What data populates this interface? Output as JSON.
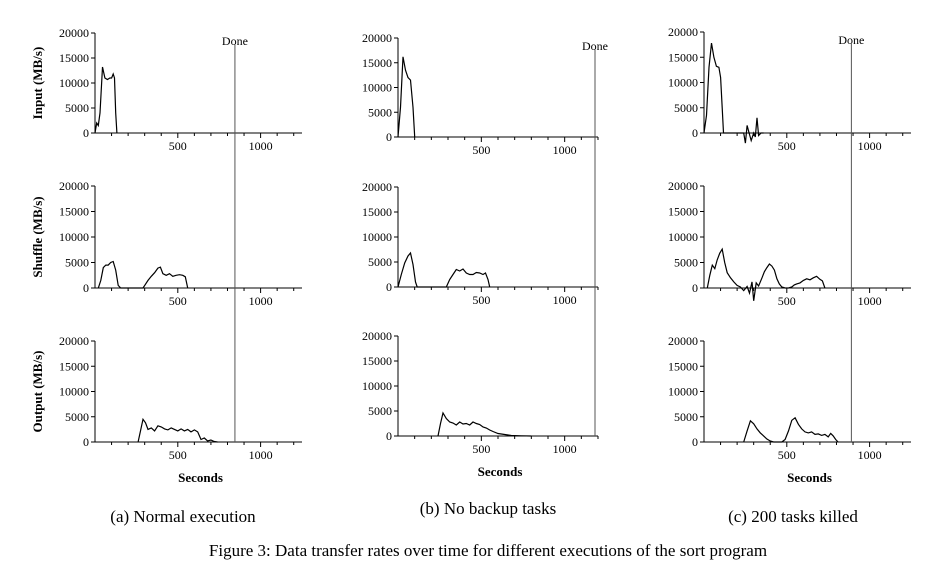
{
  "figure": {
    "caption": "Figure 3: Data transfer rates over time for different executions of the sort program"
  },
  "chart_data": [
    {
      "type": "line",
      "panel_caption": "(a) Normal execution",
      "done_label": "Done",
      "done_x": 845,
      "xlabel": "Seconds",
      "x_ticks": [
        500,
        1000
      ],
      "xlim": [
        0,
        1250
      ],
      "rows": [
        {
          "ylabel": "Input (MB/s)",
          "ylim": [
            0,
            20000
          ],
          "y_ticks": [
            0,
            5000,
            10000,
            15000,
            20000
          ],
          "points": [
            [
              0,
              0
            ],
            [
              10,
              2000
            ],
            [
              20,
              1500
            ],
            [
              30,
              4000
            ],
            [
              45,
              13200
            ],
            [
              60,
              11000
            ],
            [
              75,
              10700
            ],
            [
              90,
              11000
            ],
            [
              100,
              11000
            ],
            [
              110,
              11800
            ],
            [
              118,
              11000
            ],
            [
              125,
              4000
            ],
            [
              132,
              0
            ]
          ]
        },
        {
          "ylabel": "Shuffle (MB/s)",
          "ylim": [
            0,
            20000
          ],
          "y_ticks": [
            0,
            5000,
            10000,
            15000,
            20000
          ],
          "points": [
            [
              20,
              0
            ],
            [
              35,
              1500
            ],
            [
              50,
              4000
            ],
            [
              65,
              4500
            ],
            [
              80,
              4500
            ],
            [
              95,
              5000
            ],
            [
              110,
              5200
            ],
            [
              125,
              3500
            ],
            [
              140,
              500
            ],
            [
              155,
              0
            ],
            [
              290,
              0
            ],
            [
              300,
              500
            ],
            [
              320,
              1500
            ],
            [
              340,
              2300
            ],
            [
              360,
              3000
            ],
            [
              380,
              3900
            ],
            [
              395,
              4100
            ],
            [
              410,
              2800
            ],
            [
              430,
              2500
            ],
            [
              450,
              2800
            ],
            [
              470,
              2300
            ],
            [
              490,
              2500
            ],
            [
              510,
              2600
            ],
            [
              530,
              2500
            ],
            [
              545,
              2200
            ],
            [
              560,
              0
            ]
          ]
        },
        {
          "ylabel": "Output (MB/s)",
          "ylim": [
            0,
            20000
          ],
          "y_ticks": [
            0,
            5000,
            10000,
            15000,
            20000
          ],
          "points": [
            [
              260,
              0
            ],
            [
              275,
              2200
            ],
            [
              290,
              4500
            ],
            [
              305,
              3800
            ],
            [
              320,
              2500
            ],
            [
              340,
              2800
            ],
            [
              360,
              2200
            ],
            [
              380,
              3200
            ],
            [
              400,
              3000
            ],
            [
              420,
              2600
            ],
            [
              440,
              2400
            ],
            [
              460,
              2800
            ],
            [
              480,
              2500
            ],
            [
              500,
              2200
            ],
            [
              520,
              2600
            ],
            [
              540,
              2200
            ],
            [
              560,
              2500
            ],
            [
              580,
              2000
            ],
            [
              600,
              2400
            ],
            [
              620,
              2000
            ],
            [
              640,
              500
            ],
            [
              660,
              800
            ],
            [
              680,
              200
            ],
            [
              700,
              400
            ],
            [
              720,
              100
            ],
            [
              740,
              0
            ]
          ]
        }
      ]
    },
    {
      "type": "line",
      "panel_caption": "(b) No backup tasks",
      "done_label": "Done",
      "done_x": 1283,
      "xlabel": "Seconds",
      "x_ticks": [
        500,
        1000
      ],
      "xlim": [
        0,
        1200
      ],
      "rows": [
        {
          "ylabel": "",
          "ylim": [
            0,
            20000
          ],
          "y_ticks": [
            0,
            5000,
            10000,
            15000,
            20000
          ],
          "points": [
            [
              0,
              0
            ],
            [
              15,
              6000
            ],
            [
              30,
              16200
            ],
            [
              45,
              13500
            ],
            [
              60,
              12000
            ],
            [
              75,
              11500
            ],
            [
              90,
              6000
            ],
            [
              100,
              0
            ]
          ]
        },
        {
          "ylabel": "",
          "ylim": [
            0,
            20000
          ],
          "y_ticks": [
            0,
            5000,
            10000,
            15000,
            20000
          ],
          "points": [
            [
              0,
              0
            ],
            [
              20,
              2500
            ],
            [
              40,
              4800
            ],
            [
              60,
              6200
            ],
            [
              75,
              6800
            ],
            [
              90,
              4500
            ],
            [
              105,
              1000
            ],
            [
              115,
              0
            ],
            [
              290,
              0
            ],
            [
              310,
              1500
            ],
            [
              330,
              2500
            ],
            [
              350,
              3500
            ],
            [
              370,
              3200
            ],
            [
              390,
              3600
            ],
            [
              410,
              2800
            ],
            [
              430,
              2500
            ],
            [
              450,
              2500
            ],
            [
              470,
              2900
            ],
            [
              490,
              2800
            ],
            [
              510,
              2500
            ],
            [
              525,
              2800
            ],
            [
              540,
              1500
            ],
            [
              550,
              0
            ]
          ]
        },
        {
          "ylabel": "",
          "ylim": [
            0,
            20000
          ],
          "y_ticks": [
            0,
            5000,
            10000,
            15000,
            20000
          ],
          "points": [
            [
              240,
              0
            ],
            [
              255,
              2500
            ],
            [
              270,
              4600
            ],
            [
              290,
              3500
            ],
            [
              310,
              2800
            ],
            [
              330,
              2600
            ],
            [
              350,
              2200
            ],
            [
              370,
              2800
            ],
            [
              390,
              2400
            ],
            [
              410,
              2500
            ],
            [
              430,
              2200
            ],
            [
              450,
              2800
            ],
            [
              470,
              2500
            ],
            [
              490,
              2300
            ],
            [
              510,
              1800
            ],
            [
              530,
              1600
            ],
            [
              550,
              1200
            ],
            [
              570,
              900
            ],
            [
              600,
              500
            ],
            [
              640,
              300
            ],
            [
              680,
              100
            ],
            [
              740,
              50
            ],
            [
              800,
              0
            ]
          ]
        }
      ]
    },
    {
      "type": "line",
      "panel_caption": "(c) 200 tasks killed",
      "done_label": "Done",
      "done_x": 890,
      "xlabel": "Seconds",
      "x_ticks": [
        500,
        1000
      ],
      "xlim": [
        0,
        1250
      ],
      "rows": [
        {
          "ylabel": "",
          "ylim": [
            0,
            20000
          ],
          "y_ticks": [
            0,
            5000,
            10000,
            15000,
            20000
          ],
          "points": [
            [
              0,
              0
            ],
            [
              15,
              3500
            ],
            [
              30,
              13000
            ],
            [
              45,
              17800
            ],
            [
              60,
              15000
            ],
            [
              75,
              13200
            ],
            [
              90,
              13000
            ],
            [
              100,
              11000
            ],
            [
              110,
              5000
            ],
            [
              118,
              0
            ],
            [
              240,
              0
            ],
            [
              250,
              -2000
            ],
            [
              260,
              1500
            ],
            [
              270,
              300
            ],
            [
              285,
              -1500
            ],
            [
              300,
              0
            ],
            [
              310,
              -800
            ],
            [
              320,
              3000
            ],
            [
              330,
              -500
            ],
            [
              345,
              0
            ],
            [
              360,
              0
            ]
          ]
        },
        {
          "ylabel": "",
          "ylim": [
            0,
            20000
          ],
          "y_ticks": [
            0,
            5000,
            10000,
            15000,
            20000
          ],
          "points": [
            [
              20,
              0
            ],
            [
              35,
              2500
            ],
            [
              50,
              4500
            ],
            [
              65,
              3800
            ],
            [
              80,
              5500
            ],
            [
              95,
              6800
            ],
            [
              110,
              7600
            ],
            [
              125,
              5000
            ],
            [
              140,
              3000
            ],
            [
              160,
              2000
            ],
            [
              180,
              1200
            ],
            [
              200,
              500
            ],
            [
              220,
              200
            ],
            [
              240,
              -500
            ],
            [
              260,
              300
            ],
            [
              275,
              -1000
            ],
            [
              290,
              1200
            ],
            [
              300,
              -2500
            ],
            [
              315,
              1000
            ],
            [
              330,
              400
            ],
            [
              350,
              2000
            ],
            [
              365,
              3200
            ],
            [
              380,
              4000
            ],
            [
              395,
              4700
            ],
            [
              410,
              4300
            ],
            [
              425,
              3500
            ],
            [
              440,
              1800
            ],
            [
              455,
              800
            ],
            [
              470,
              200
            ],
            [
              490,
              0
            ],
            [
              510,
              0
            ],
            [
              530,
              200
            ],
            [
              545,
              600
            ],
            [
              560,
              800
            ],
            [
              580,
              1000
            ],
            [
              600,
              1500
            ],
            [
              620,
              1800
            ],
            [
              640,
              1600
            ],
            [
              660,
              2000
            ],
            [
              680,
              2300
            ],
            [
              700,
              1700
            ],
            [
              715,
              1400
            ],
            [
              730,
              0
            ]
          ]
        },
        {
          "ylabel": "",
          "ylim": [
            0,
            20000
          ],
          "y_ticks": [
            0,
            5000,
            10000,
            15000,
            20000
          ],
          "points": [
            [
              240,
              0
            ],
            [
              260,
              2200
            ],
            [
              280,
              4200
            ],
            [
              300,
              3600
            ],
            [
              320,
              2600
            ],
            [
              340,
              1800
            ],
            [
              360,
              1200
            ],
            [
              380,
              600
            ],
            [
              400,
              200
            ],
            [
              420,
              0
            ],
            [
              440,
              0
            ],
            [
              470,
              0
            ],
            [
              490,
              500
            ],
            [
              510,
              2200
            ],
            [
              530,
              4300
            ],
            [
              550,
              4800
            ],
            [
              570,
              3500
            ],
            [
              590,
              2600
            ],
            [
              610,
              2000
            ],
            [
              630,
              1800
            ],
            [
              650,
              2000
            ],
            [
              670,
              1500
            ],
            [
              690,
              1600
            ],
            [
              710,
              1300
            ],
            [
              730,
              1500
            ],
            [
              750,
              1000
            ],
            [
              765,
              1700
            ],
            [
              780,
              1200
            ],
            [
              795,
              500
            ],
            [
              810,
              0
            ]
          ]
        }
      ]
    }
  ]
}
